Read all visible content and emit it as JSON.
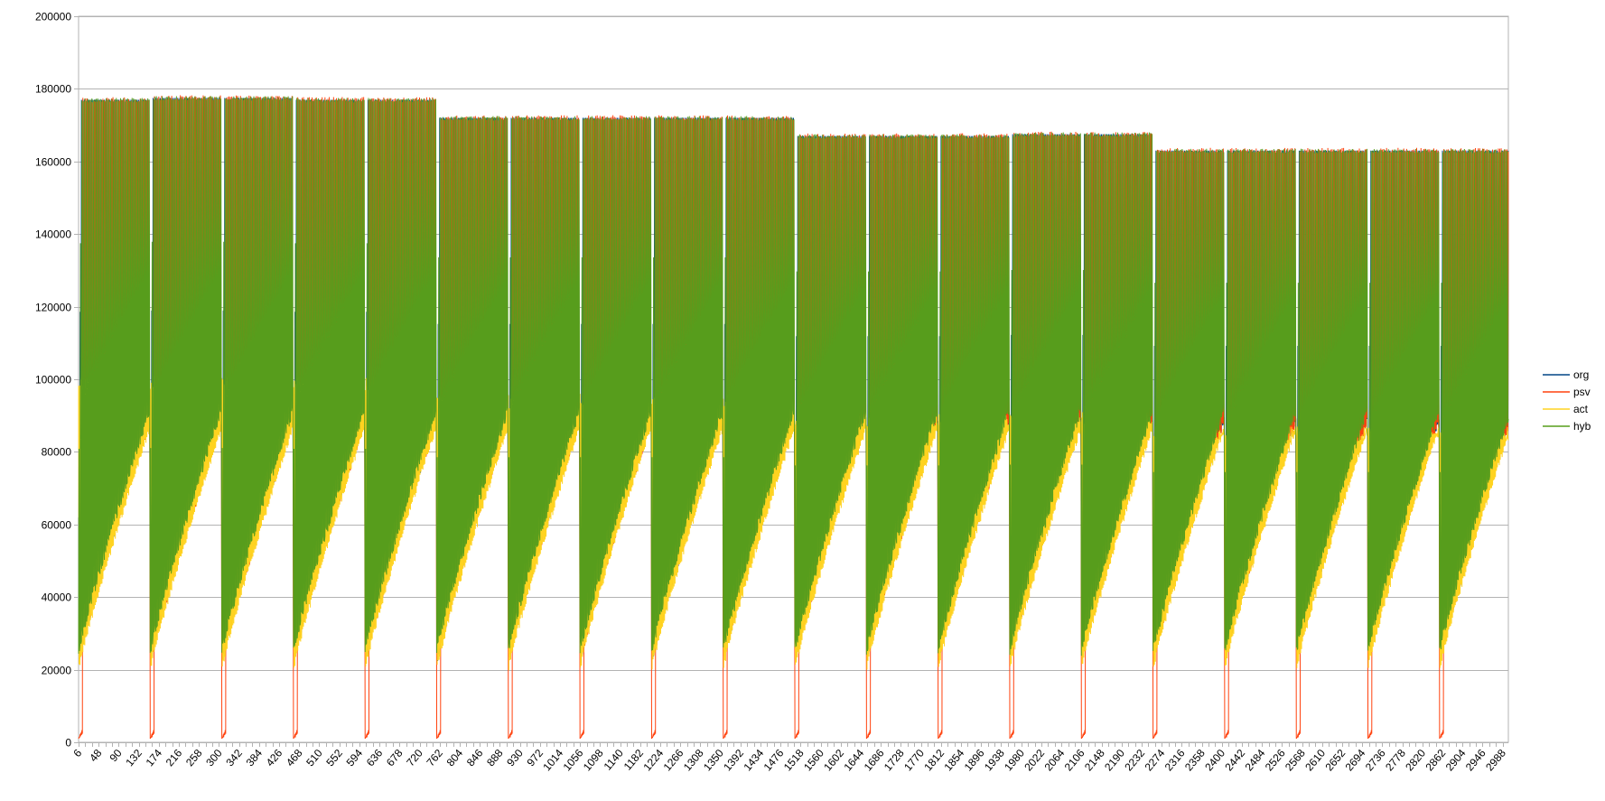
{
  "chart_data": {
    "type": "line",
    "title": "",
    "xlabel": "",
    "ylabel": "",
    "ylim": [
      0,
      200000
    ],
    "y_ticks": [
      0,
      20000,
      40000,
      60000,
      80000,
      100000,
      120000,
      140000,
      160000,
      180000,
      200000
    ],
    "y_tick_labels": [
      "0",
      "20000",
      "40000",
      "60000",
      "80000",
      "100000",
      "120000",
      "140000",
      "160000",
      "180000",
      "200000"
    ],
    "x_range": [
      6,
      3000
    ],
    "x_tick_labels": [
      "6",
      "48",
      "90",
      "132",
      "174",
      "216",
      "258",
      "300",
      "342",
      "384",
      "426",
      "468",
      "510",
      "552",
      "594",
      "636",
      "678",
      "720",
      "762",
      "804",
      "846",
      "888",
      "930",
      "972",
      "1014",
      "1056",
      "1098",
      "1140",
      "1182",
      "1224",
      "1266",
      "1308",
      "1350",
      "1392",
      "1434",
      "1476",
      "1518",
      "1560",
      "1602",
      "1644",
      "1686",
      "1728",
      "1770",
      "1812",
      "1854",
      "1896",
      "1938",
      "1980",
      "2022",
      "2064",
      "2106",
      "2148",
      "2190",
      "2232",
      "2274",
      "2316",
      "2358",
      "2400",
      "2442",
      "2484",
      "2526",
      "2568",
      "2610",
      "2652",
      "2694",
      "2736",
      "2778",
      "2820",
      "2862",
      "2904",
      "2946",
      "2988"
    ],
    "grid": true,
    "legend_position": "right",
    "series": [
      {
        "name": "org",
        "color": "#004586"
      },
      {
        "name": "psv",
        "color": "#ff420e"
      },
      {
        "name": "act",
        "color": "#ffd320"
      },
      {
        "name": "hyb",
        "color": "#579d1c"
      }
    ],
    "cycle_pattern": {
      "cycle_length_x": 150,
      "cycles": 20,
      "peak_values": [
        177000,
        177500,
        177500,
        177000,
        177000,
        172000,
        172000,
        172000,
        172000,
        172000,
        167000,
        167000,
        167000,
        167500,
        167500,
        163000,
        163000,
        163000,
        163000,
        163000
      ],
      "yellow_high_values": [
        101000,
        101000,
        101000,
        101000,
        101000,
        96000,
        96000,
        96000,
        96000,
        96000,
        91000,
        91000,
        91000,
        91000,
        91000,
        87000,
        87000,
        87000,
        87000,
        87000
      ],
      "trough_start": 22000,
      "trough_end": 89000,
      "psv_low_start": 1000,
      "psv_low_end": 4000
    }
  }
}
